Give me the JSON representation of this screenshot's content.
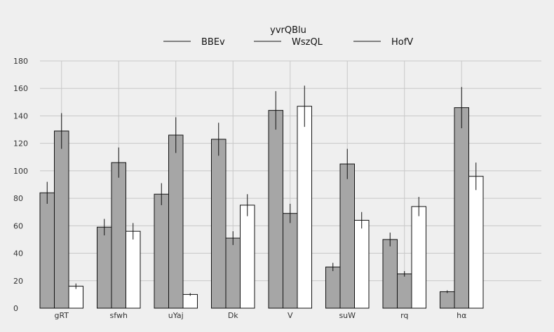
{
  "chart_data": {
    "type": "bar",
    "title": "",
    "xlabel": "",
    "ylabel": "",
    "ylim": [
      0,
      180
    ],
    "yticks": [
      0,
      20,
      40,
      60,
      80,
      100,
      120,
      140,
      160,
      180
    ],
    "grid": true,
    "legend": {
      "title": "yvrQBlu",
      "placement": "top-center"
    },
    "categories": [
      "gRT",
      "sfwh",
      "uYaj",
      "Dk",
      "V",
      "suW",
      "rq",
      "hα"
    ],
    "series": [
      {
        "name": "BBEv",
        "color": "#a6a6a6",
        "values": [
          84,
          59,
          83,
          123,
          144,
          30,
          50,
          12
        ],
        "errors": [
          8,
          6,
          8,
          12,
          14,
          3,
          5,
          1
        ]
      },
      {
        "name": "WszQL",
        "color": "#a6a6a6",
        "values": [
          129,
          106,
          126,
          51,
          69,
          105,
          25,
          146
        ],
        "errors": [
          13,
          11,
          13,
          5,
          7,
          11,
          2,
          15
        ]
      },
      {
        "name": "HofV",
        "color": "#ffffff",
        "values": [
          16,
          56,
          10,
          75,
          147,
          64,
          74,
          96
        ],
        "errors": [
          2,
          6,
          1,
          8,
          15,
          6,
          7,
          10
        ]
      }
    ]
  }
}
